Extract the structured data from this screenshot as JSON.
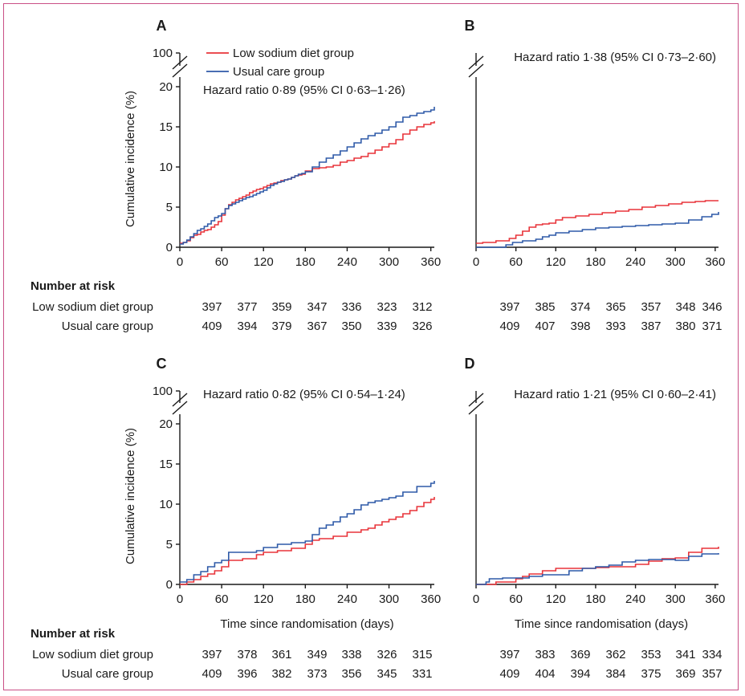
{
  "legend": {
    "low_sodium": "Low sodium diet group",
    "usual_care": "Usual care group"
  },
  "colors": {
    "low_sodium": "#e8343a",
    "usual_care": "#2f5aa8",
    "axis": "#1a1a1a"
  },
  "risk_table": {
    "heading": "Number at risk",
    "row_labels": [
      "Low sodium diet group",
      "Usual care group"
    ]
  },
  "chart_data": [
    {
      "panel": "A",
      "type": "line",
      "step": true,
      "annotation": "Hazard ratio 0·89 (95% CI 0·63–1·26)",
      "ylabel": "Cumulative incidence (%)",
      "xlabel": "",
      "xlim": [
        0,
        365
      ],
      "ylim": [
        0,
        20
      ],
      "yticks": [
        0,
        5,
        10,
        15,
        20
      ],
      "y_break_label": "100",
      "xticks": [
        0,
        60,
        120,
        180,
        240,
        300,
        360
      ],
      "series": [
        {
          "name": "Low sodium diet group",
          "x": [
            0,
            5,
            10,
            15,
            20,
            25,
            30,
            35,
            40,
            45,
            50,
            55,
            60,
            65,
            70,
            75,
            80,
            85,
            90,
            95,
            100,
            105,
            110,
            115,
            120,
            125,
            130,
            135,
            140,
            145,
            150,
            155,
            160,
            165,
            170,
            175,
            180,
            190,
            200,
            210,
            220,
            230,
            240,
            250,
            260,
            270,
            280,
            290,
            300,
            310,
            320,
            330,
            340,
            350,
            360,
            365
          ],
          "y": [
            0.5,
            0.6,
            0.8,
            1.2,
            1.5,
            1.6,
            1.9,
            2.1,
            2.2,
            2.5,
            2.8,
            3.2,
            4.0,
            4.8,
            5.3,
            5.6,
            5.9,
            6.1,
            6.3,
            6.5,
            6.8,
            7.0,
            7.2,
            7.3,
            7.5,
            7.7,
            7.9,
            8.0,
            8.1,
            8.3,
            8.4,
            8.5,
            8.7,
            8.9,
            9.0,
            9.1,
            9.5,
            9.8,
            9.9,
            10.0,
            10.2,
            10.6,
            10.8,
            11.1,
            11.3,
            11.7,
            12.1,
            12.5,
            12.9,
            13.4,
            14.1,
            14.6,
            15.0,
            15.3,
            15.5,
            15.7
          ]
        },
        {
          "name": "Usual care group",
          "x": [
            0,
            5,
            10,
            15,
            20,
            25,
            30,
            35,
            40,
            45,
            50,
            55,
            60,
            65,
            70,
            75,
            80,
            85,
            90,
            95,
            100,
            105,
            110,
            115,
            120,
            125,
            130,
            135,
            140,
            145,
            150,
            155,
            160,
            165,
            170,
            175,
            180,
            190,
            200,
            210,
            220,
            230,
            240,
            250,
            260,
            270,
            280,
            290,
            300,
            310,
            320,
            330,
            340,
            350,
            360,
            365
          ],
          "y": [
            0.4,
            0.6,
            0.9,
            1.3,
            1.7,
            2.1,
            2.3,
            2.6,
            2.9,
            3.3,
            3.7,
            3.9,
            4.2,
            4.8,
            5.2,
            5.4,
            5.6,
            5.8,
            6.0,
            6.2,
            6.3,
            6.5,
            6.7,
            6.9,
            7.1,
            7.4,
            7.7,
            7.9,
            8.1,
            8.2,
            8.4,
            8.5,
            8.7,
            8.9,
            9.1,
            9.2,
            9.4,
            10.0,
            10.6,
            11.1,
            11.5,
            12.0,
            12.5,
            13.0,
            13.5,
            13.9,
            14.2,
            14.6,
            15.0,
            15.6,
            16.2,
            16.4,
            16.7,
            16.9,
            17.1,
            17.5
          ]
        }
      ],
      "risk": {
        "days": [
          0,
          60,
          120,
          180,
          240,
          300,
          360
        ],
        "low_sodium": [
          397,
          377,
          359,
          347,
          336,
          323,
          312
        ],
        "usual_care": [
          409,
          394,
          379,
          367,
          350,
          339,
          326
        ]
      }
    },
    {
      "panel": "B",
      "type": "line",
      "step": true,
      "annotation": "Hazard ratio 1·38 (95% CI 0·73–2·60)",
      "ylabel": "",
      "xlabel": "",
      "xlim": [
        0,
        365
      ],
      "ylim": [
        0,
        20
      ],
      "yticks": [],
      "y_break_label": "",
      "xticks": [
        0,
        60,
        120,
        180,
        240,
        300,
        360
      ],
      "series": [
        {
          "name": "Low sodium diet group",
          "x": [
            0,
            10,
            30,
            50,
            60,
            70,
            80,
            90,
            100,
            110,
            120,
            130,
            150,
            170,
            190,
            210,
            230,
            250,
            270,
            290,
            310,
            330,
            345,
            365
          ],
          "y": [
            0.5,
            0.6,
            0.8,
            1.1,
            1.5,
            2.0,
            2.5,
            2.8,
            2.9,
            3.0,
            3.4,
            3.7,
            3.9,
            4.1,
            4.3,
            4.5,
            4.7,
            5.0,
            5.2,
            5.4,
            5.6,
            5.7,
            5.8,
            5.8
          ]
        },
        {
          "name": "Usual care group",
          "x": [
            0,
            30,
            45,
            55,
            70,
            90,
            100,
            110,
            120,
            140,
            160,
            180,
            200,
            220,
            240,
            260,
            280,
            300,
            320,
            340,
            355,
            365
          ],
          "y": [
            0.0,
            0.0,
            0.3,
            0.6,
            0.8,
            1.0,
            1.3,
            1.5,
            1.8,
            2.0,
            2.2,
            2.4,
            2.5,
            2.6,
            2.7,
            2.8,
            2.9,
            3.0,
            3.4,
            3.8,
            4.1,
            4.4
          ]
        }
      ],
      "risk": {
        "days": [
          0,
          60,
          120,
          180,
          240,
          300,
          360
        ],
        "low_sodium": [
          397,
          385,
          374,
          365,
          357,
          348,
          346
        ],
        "usual_care": [
          409,
          407,
          398,
          393,
          387,
          380,
          371
        ]
      }
    },
    {
      "panel": "C",
      "type": "line",
      "step": true,
      "annotation": "Hazard ratio 0·82 (95% CI 0·54–1·24)",
      "ylabel": "Cumulative incidence (%)",
      "xlabel": "Time since randomisation (days)",
      "xlim": [
        0,
        365
      ],
      "ylim": [
        0,
        20
      ],
      "yticks": [
        0,
        5,
        10,
        15,
        20
      ],
      "y_break_label": "100",
      "xticks": [
        0,
        60,
        120,
        180,
        240,
        300,
        360
      ],
      "series": [
        {
          "name": "Low sodium diet group",
          "x": [
            0,
            10,
            20,
            30,
            40,
            50,
            60,
            70,
            90,
            110,
            120,
            140,
            160,
            180,
            190,
            200,
            220,
            240,
            260,
            270,
            280,
            290,
            300,
            310,
            320,
            330,
            340,
            350,
            360,
            365
          ],
          "y": [
            0.0,
            0.3,
            0.6,
            1.0,
            1.3,
            1.7,
            2.2,
            3.0,
            3.2,
            3.7,
            4.0,
            4.2,
            4.5,
            5.0,
            5.5,
            5.7,
            6.0,
            6.5,
            6.8,
            7.0,
            7.4,
            7.8,
            8.1,
            8.4,
            8.8,
            9.2,
            9.7,
            10.2,
            10.6,
            10.9
          ]
        },
        {
          "name": "Usual care group",
          "x": [
            0,
            10,
            20,
            30,
            40,
            50,
            60,
            70,
            90,
            110,
            120,
            140,
            160,
            180,
            190,
            200,
            210,
            220,
            230,
            240,
            250,
            260,
            270,
            280,
            290,
            300,
            310,
            320,
            340,
            360,
            365
          ],
          "y": [
            0.3,
            0.6,
            1.2,
            1.6,
            2.2,
            2.7,
            3.0,
            4.0,
            4.0,
            4.2,
            4.6,
            5.0,
            5.2,
            5.4,
            6.2,
            7.0,
            7.4,
            7.8,
            8.4,
            8.8,
            9.3,
            9.9,
            10.2,
            10.4,
            10.6,
            10.8,
            11.0,
            11.5,
            12.2,
            12.6,
            12.9
          ]
        }
      ],
      "risk": {
        "days": [
          0,
          60,
          120,
          180,
          240,
          300,
          360
        ],
        "low_sodium": [
          397,
          378,
          361,
          349,
          338,
          326,
          315
        ],
        "usual_care": [
          409,
          396,
          382,
          373,
          356,
          345,
          331
        ]
      }
    },
    {
      "panel": "D",
      "type": "line",
      "step": true,
      "annotation": "Hazard ratio 1·21 (95% CI 0·60–2·41)",
      "ylabel": "",
      "xlabel": "Time since randomisation (days)",
      "xlim": [
        0,
        365
      ],
      "ylim": [
        0,
        20
      ],
      "yticks": [],
      "y_break_label": "",
      "xticks": [
        0,
        60,
        120,
        180,
        240,
        300,
        360
      ],
      "series": [
        {
          "name": "Low sodium diet group",
          "x": [
            0,
            15,
            30,
            60,
            70,
            80,
            100,
            120,
            150,
            180,
            200,
            220,
            240,
            260,
            280,
            300,
            320,
            340,
            365
          ],
          "y": [
            0.0,
            0.0,
            0.3,
            0.7,
            1.0,
            1.3,
            1.7,
            2.0,
            2.0,
            2.1,
            2.2,
            2.2,
            2.5,
            2.9,
            3.2,
            3.3,
            4.0,
            4.5,
            4.7
          ]
        },
        {
          "name": "Usual care group",
          "x": [
            0,
            15,
            20,
            40,
            60,
            80,
            100,
            120,
            140,
            160,
            180,
            200,
            220,
            240,
            260,
            280,
            300,
            320,
            340,
            365
          ],
          "y": [
            0.0,
            0.3,
            0.7,
            0.8,
            0.8,
            1.0,
            1.2,
            1.2,
            1.7,
            2.0,
            2.2,
            2.4,
            2.8,
            3.0,
            3.1,
            3.1,
            3.0,
            3.5,
            3.8,
            3.9
          ]
        }
      ],
      "risk": {
        "days": [
          0,
          60,
          120,
          180,
          240,
          300,
          360
        ],
        "low_sodium": [
          397,
          383,
          369,
          362,
          353,
          341,
          334
        ],
        "usual_care": [
          409,
          404,
          394,
          384,
          375,
          369,
          357
        ]
      }
    }
  ]
}
